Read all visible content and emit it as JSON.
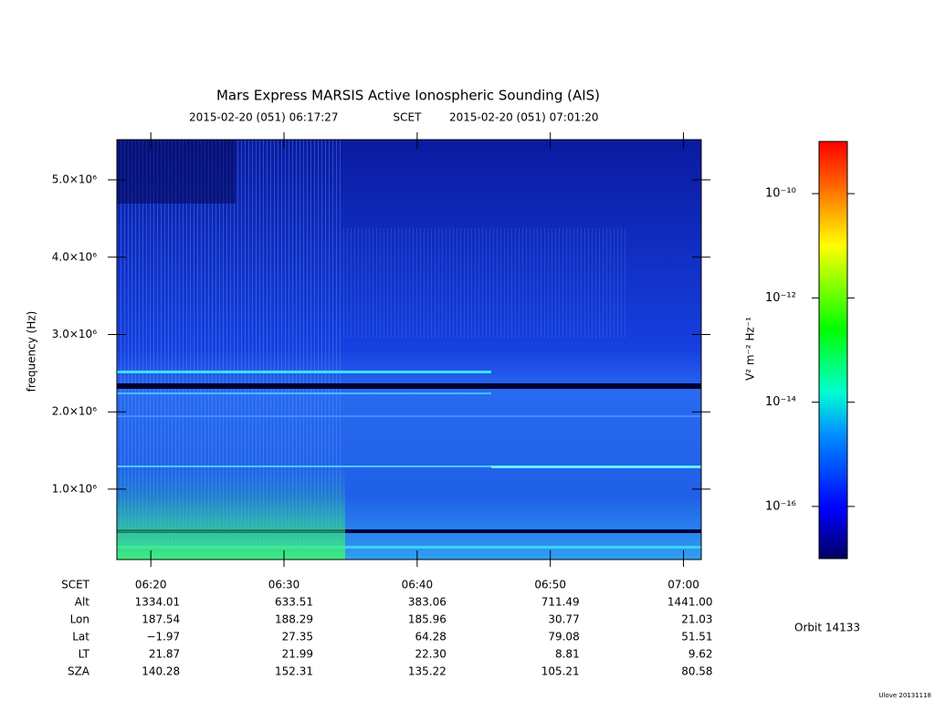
{
  "chart_data": {
    "type": "spectrogram",
    "title": "Mars Express MARSIS Active Ionospheric Sounding (AIS)",
    "start": "2015-02-20 (051) 06:17:27",
    "time_system": "SCET",
    "end": "2015-02-20 (051) 07:01:20",
    "ylabel": "frequency (Hz)",
    "ylim": [
      90000,
      5520000
    ],
    "yticks": [
      {
        "value": 1000000,
        "label": "1.0×10⁶"
      },
      {
        "value": 2000000,
        "label": "2.0×10⁶"
      },
      {
        "value": 3000000,
        "label": "3.0×10⁶"
      },
      {
        "value": 4000000,
        "label": "4.0×10⁶"
      },
      {
        "value": 5000000,
        "label": "5.0×10⁶"
      }
    ],
    "xticks": [
      "06:20",
      "06:30",
      "06:40",
      "06:50",
      "07:00"
    ],
    "colorbar": {
      "label": "V² m⁻² Hz⁻¹",
      "log_scale": true,
      "clim": [
        1e-17,
        1e-09
      ],
      "ticks": [
        {
          "value": 1e-10,
          "label": "10⁻¹⁰"
        },
        {
          "value": 1e-12,
          "label": "10⁻¹²"
        },
        {
          "value": 1e-14,
          "label": "10⁻¹⁴"
        },
        {
          "value": 1e-16,
          "label": "10⁻¹⁶"
        }
      ]
    },
    "ephemeris": {
      "time_label": "SCET",
      "rows": [
        {
          "name": "Alt",
          "values": [
            "1334.01",
            "633.51",
            "383.06",
            "711.49",
            "1441.00"
          ]
        },
        {
          "name": "Lon",
          "values": [
            "187.54",
            "188.29",
            "185.96",
            "30.77",
            "21.03"
          ]
        },
        {
          "name": "Lat",
          "values": [
            "−1.97",
            "27.35",
            "64.28",
            "79.08",
            "51.51"
          ]
        },
        {
          "name": "LT",
          "values": [
            "21.87",
            "21.99",
            "22.30",
            "8.81",
            "9.62"
          ]
        },
        {
          "name": "SZA",
          "values": [
            "140.28",
            "152.31",
            "135.22",
            "105.21",
            "80.58"
          ]
        }
      ]
    },
    "orbit": "Orbit 14133",
    "footer": "Ulove 20131118"
  }
}
